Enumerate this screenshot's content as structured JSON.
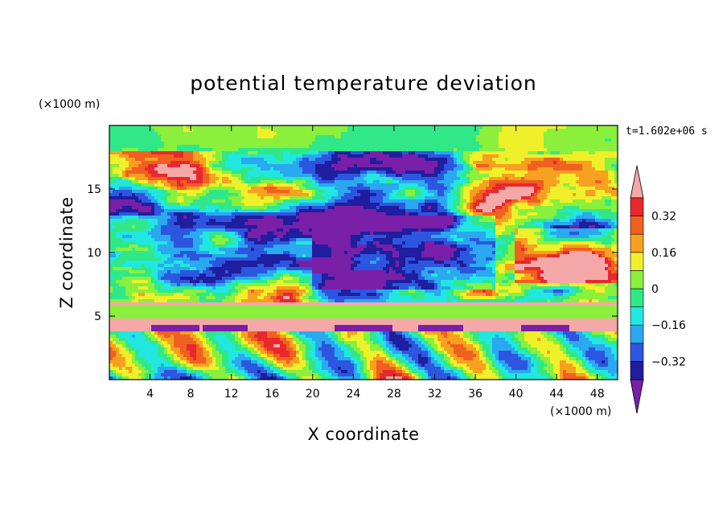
{
  "chart_data": {
    "type": "heatmap",
    "title": "potential temperature deviation",
    "xlabel": "X coordinate",
    "ylabel": "Z coordinate",
    "x_unit": "(×1000 m)",
    "y_unit": "(×1000 m)",
    "time_label": "t=1.602e+06 s",
    "xlim": [
      0,
      50
    ],
    "ylim": [
      0,
      20
    ],
    "x_ticks": [
      4,
      8,
      12,
      16,
      20,
      24,
      28,
      32,
      36,
      40,
      44,
      48
    ],
    "y_ticks": [
      5,
      10,
      15
    ],
    "colorbar": {
      "ticks": [
        0.32,
        0.16,
        0,
        -0.16,
        -0.32
      ],
      "tick_labels": [
        "0.32",
        "0.16",
        "0",
        "−0.16",
        "−0.32"
      ],
      "levels": [
        -0.4,
        -0.32,
        -0.24,
        -0.16,
        -0.08,
        0,
        0.08,
        0.16,
        0.24,
        0.32,
        0.4
      ],
      "colors": [
        "#7a1fa8",
        "#1e1e9e",
        "#2d56e0",
        "#2aa8f0",
        "#20e8e0",
        "#31e889",
        "#8af03c",
        "#f0f02a",
        "#f8a020",
        "#f06020",
        "#e8282e",
        "#f5a8a8"
      ]
    }
  }
}
